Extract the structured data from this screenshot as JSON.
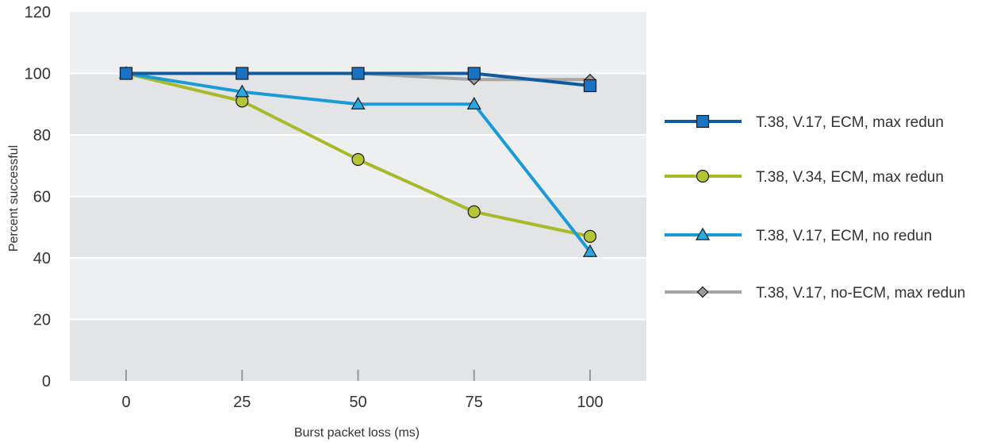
{
  "chart_data": {
    "type": "line",
    "title": "",
    "xlabel": "Burst packet loss (ms)",
    "ylabel": "Percent successful",
    "x": [
      0,
      25,
      50,
      75,
      100
    ],
    "x_tick_labels": [
      "0",
      "25",
      "50",
      "75",
      "100"
    ],
    "ylim": [
      0,
      120
    ],
    "y_ticks": [
      0,
      20,
      40,
      60,
      80,
      100,
      120
    ],
    "y_tick_labels": [
      "0",
      "20",
      "40",
      "60",
      "80",
      "100",
      "120"
    ],
    "grid": "alternating horizontal bands",
    "legend_position": "right",
    "series": [
      {
        "name": "T.38, V.17, ECM, max redun",
        "values": [
          100,
          100,
          100,
          100,
          96
        ],
        "color": "#0f5aa0",
        "marker_fill": "#1a73c2",
        "marker": "square"
      },
      {
        "name": "T.38, V.34, ECM, max redun",
        "values": [
          100,
          91,
          72,
          55,
          47
        ],
        "color": "#a8b92a",
        "marker_fill": "#b4c536",
        "marker": "circle"
      },
      {
        "name": "T.38, V.17, ECM, no redun",
        "values": [
          100,
          94,
          90,
          90,
          42
        ],
        "color": "#1a9ad6",
        "marker_fill": "#29a9e0",
        "marker": "triangle"
      },
      {
        "name": "T.38, V.17, no-ECM, max redun",
        "values": [
          100,
          100,
          100,
          98,
          98
        ],
        "color": "#a6a6a6",
        "marker_fill": "#9a9a9a",
        "marker": "diamond"
      }
    ]
  }
}
